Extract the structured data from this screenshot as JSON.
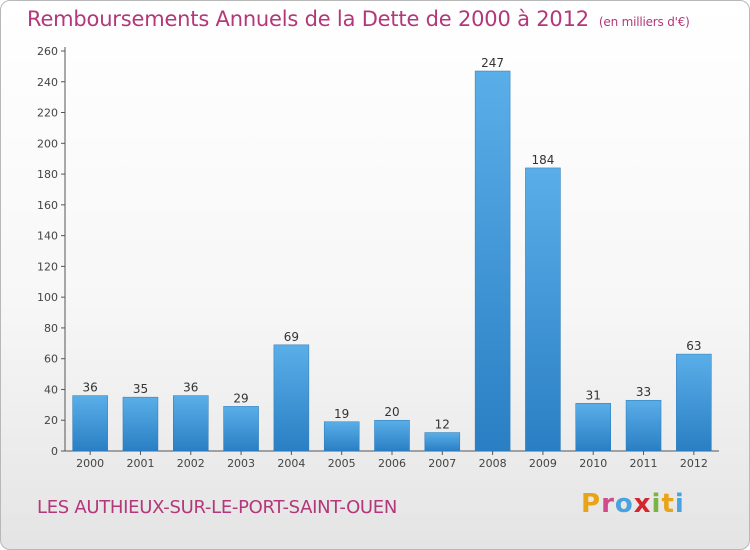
{
  "header": {
    "title": "Remboursements Annuels de la Dette de 2000 à 2012",
    "subtitle": "(en milliers d'€)"
  },
  "footer": {
    "commune": "LES AUTHIEUX-SUR-LE-PORT-SAINT-OUEN",
    "logo_letters": [
      "P",
      "r",
      "o",
      "x",
      "i",
      "t",
      "i"
    ],
    "logo_colors": [
      "#e8a317",
      "#d24a8c",
      "#4aa3df",
      "#d4262c",
      "#7cb342",
      "#e8a317",
      "#4aa3df"
    ]
  },
  "chart_data": {
    "type": "bar",
    "title": "Remboursements Annuels de la Dette de 2000 à 2012",
    "categories": [
      "2000",
      "2001",
      "2002",
      "2003",
      "2004",
      "2005",
      "2006",
      "2007",
      "2008",
      "2009",
      "2010",
      "2011",
      "2012"
    ],
    "values": [
      36,
      35,
      36,
      29,
      69,
      19,
      20,
      12,
      247,
      184,
      31,
      33,
      63
    ],
    "ylim": [
      0,
      260
    ],
    "yticks": [
      0,
      20,
      40,
      60,
      80,
      100,
      120,
      140,
      160,
      180,
      200,
      220,
      240,
      260
    ],
    "grid": false,
    "bar_color": "#3b93d8"
  }
}
